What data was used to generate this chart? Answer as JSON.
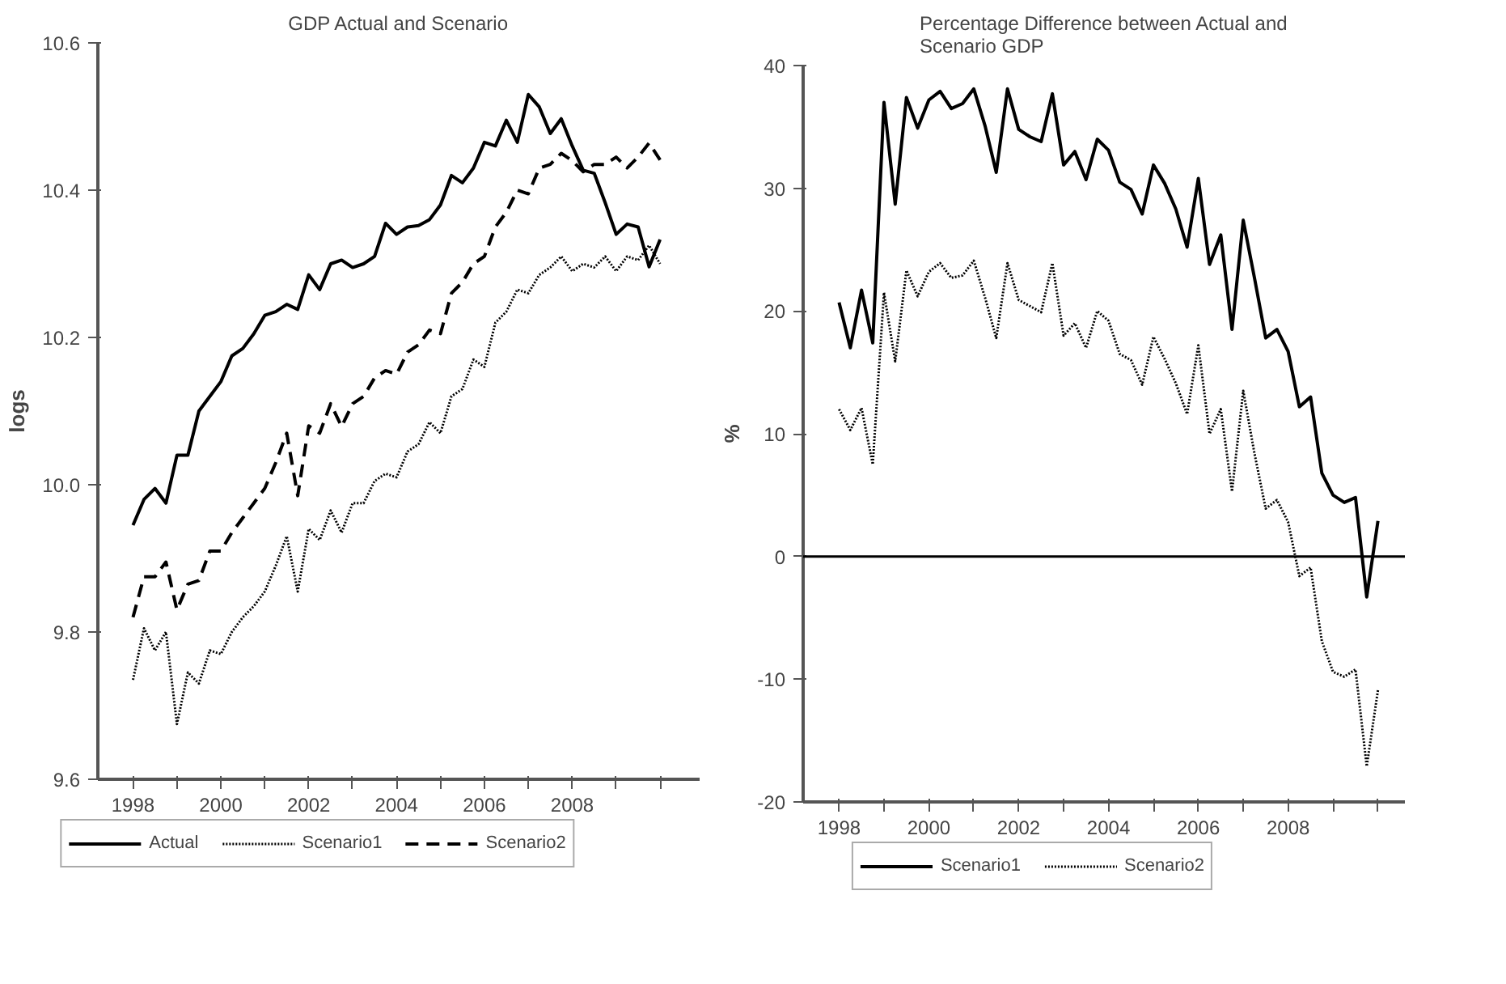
{
  "chart_data": [
    {
      "type": "line",
      "title": "GDP Actual and Scenario",
      "ylabel": "logs",
      "x": [
        1998,
        1998.25,
        1998.5,
        1998.75,
        1999,
        1999.25,
        1999.5,
        1999.75,
        2000,
        2000.25,
        2000.5,
        2000.75,
        2001,
        2001.25,
        2001.5,
        2001.75,
        2002,
        2002.25,
        2002.5,
        2002.75,
        2003,
        2003.25,
        2003.5,
        2003.75,
        2004,
        2004.25,
        2004.5,
        2004.75,
        2005,
        2005.25,
        2005.5,
        2005.75,
        2006,
        2006.25,
        2006.5,
        2006.75,
        2007,
        2007.25,
        2007.5,
        2007.75,
        2008,
        2008.25,
        2008.5,
        2008.75,
        2009,
        2009.25,
        2009.5,
        2009.75,
        2010
      ],
      "series": [
        {
          "name": "Actual",
          "color": "#000000",
          "line_style": "solid",
          "values": [
            9.945,
            9.98,
            9.995,
            9.975,
            10.04,
            10.04,
            10.1,
            10.12,
            10.14,
            10.175,
            10.185,
            10.205,
            10.23,
            10.235,
            10.245,
            10.238,
            10.285,
            10.265,
            10.3,
            10.305,
            10.295,
            10.3,
            10.31,
            10.355,
            10.34,
            10.35,
            10.352,
            10.36,
            10.38,
            10.42,
            10.41,
            10.43,
            10.465,
            10.46,
            10.495,
            10.465,
            10.53,
            10.513,
            10.477,
            10.497,
            10.46,
            10.427,
            10.423,
            10.383,
            10.34,
            10.354,
            10.35,
            10.296,
            10.333
          ]
        },
        {
          "name": "Scenario1",
          "color": "#000000",
          "line_style": "dotted",
          "values": [
            9.735,
            9.805,
            9.775,
            9.8,
            9.675,
            9.745,
            9.73,
            9.775,
            9.77,
            9.8,
            9.82,
            9.835,
            9.855,
            9.89,
            9.93,
            9.855,
            9.94,
            9.925,
            9.965,
            9.935,
            9.975,
            9.975,
            10.005,
            10.015,
            10.01,
            10.045,
            10.055,
            10.085,
            10.07,
            10.12,
            10.13,
            10.17,
            10.16,
            10.22,
            10.235,
            10.265,
            10.26,
            10.285,
            10.295,
            10.31,
            10.29,
            10.3,
            10.295,
            10.31,
            10.29,
            10.31,
            10.305,
            10.325,
            10.3
          ]
        },
        {
          "name": "Scenario2",
          "color": "#000000",
          "line_style": "dashed",
          "values": [
            9.82,
            9.875,
            9.875,
            9.895,
            9.83,
            9.865,
            9.87,
            9.91,
            9.91,
            9.935,
            9.955,
            9.975,
            9.995,
            10.03,
            10.07,
            9.985,
            10.08,
            10.07,
            10.11,
            10.079,
            10.11,
            10.12,
            10.145,
            10.155,
            10.15,
            10.18,
            10.19,
            10.21,
            10.205,
            10.26,
            10.275,
            10.3,
            10.31,
            10.35,
            10.37,
            10.4,
            10.395,
            10.43,
            10.435,
            10.45,
            10.44,
            10.425,
            10.435,
            10.435,
            10.445,
            10.43,
            10.445,
            10.464,
            10.441
          ]
        }
      ],
      "xlim": [
        1997.2,
        2010.9
      ],
      "ylim": [
        9.6,
        10.6
      ],
      "xticks": [
        1998,
        {
          "value": 1999,
          "label": null
        },
        2000,
        {
          "value": 2001,
          "label": null
        },
        2002,
        {
          "value": 2003,
          "label": null
        },
        2004,
        {
          "value": 2005,
          "label": null
        },
        2006,
        {
          "value": 2007,
          "label": null
        },
        2008,
        {
          "value": 2009,
          "label": null
        },
        {
          "value": 2010,
          "label": null
        }
      ],
      "yticks": [
        {
          "value": 9.6,
          "label": "9.6"
        },
        {
          "value": 9.8,
          "label": "9.8"
        },
        {
          "value": 10.0,
          "label": "10.0"
        },
        {
          "value": 10.2,
          "label": "10.2"
        },
        {
          "value": 10.4,
          "label": "10.4"
        },
        {
          "value": 10.6,
          "label": "10.6"
        }
      ],
      "grid": false,
      "legend": "bottom"
    },
    {
      "type": "line",
      "title": "Percentage Difference between Actual and Scenario GDP",
      "ylabel": "%",
      "x": [
        1998,
        1998.25,
        1998.5,
        1998.75,
        1999,
        1999.25,
        1999.5,
        1999.75,
        2000,
        2000.25,
        2000.5,
        2000.75,
        2001,
        2001.25,
        2001.5,
        2001.75,
        2002,
        2002.25,
        2002.5,
        2002.75,
        2003,
        2003.25,
        2003.5,
        2003.75,
        2004,
        2004.25,
        2004.5,
        2004.75,
        2005,
        2005.25,
        2005.5,
        2005.75,
        2006,
        2006.25,
        2006.5,
        2006.75,
        2007,
        2007.25,
        2007.5,
        2007.75,
        2008,
        2008.25,
        2008.5,
        2008.75,
        2009,
        2009.25,
        2009.5,
        2009.75,
        2010
      ],
      "series": [
        {
          "name": "Scenario1",
          "color": "#000000",
          "line_style": "solid",
          "values": [
            20.7,
            17.0,
            21.7,
            17.4,
            37.0,
            28.7,
            37.4,
            34.9,
            37.2,
            37.9,
            36.5,
            36.9,
            38.1,
            35.1,
            31.3,
            38.1,
            34.8,
            34.2,
            33.8,
            37.7,
            31.9,
            33.0,
            30.7,
            34.0,
            33.1,
            30.5,
            29.9,
            27.9,
            31.9,
            30.4,
            28.3,
            25.2,
            30.8,
            23.8,
            26.2,
            18.5,
            27.4,
            22.7,
            17.8,
            18.5,
            16.7,
            12.2,
            13.0,
            6.8,
            5.0,
            4.4,
            4.8,
            -3.3,
            2.9
          ]
        },
        {
          "name": "Scenario2",
          "color": "#000000",
          "line_style": "dotted",
          "values": [
            12.0,
            10.3,
            12.1,
            7.5,
            21.5,
            15.9,
            23.3,
            21.2,
            23.2,
            23.9,
            22.7,
            22.9,
            24.1,
            21.1,
            17.8,
            23.9,
            20.9,
            20.4,
            19.9,
            23.9,
            18.0,
            19.0,
            17.0,
            20.0,
            19.2,
            16.5,
            16.0,
            14.0,
            17.9,
            16.1,
            14.1,
            11.6,
            17.2,
            10.0,
            12.0,
            5.3,
            13.5,
            8.4,
            3.9,
            4.6,
            2.8,
            -1.6,
            -0.9,
            -6.9,
            -9.4,
            -9.8,
            -9.2,
            -17.1,
            -10.9
          ]
        }
      ],
      "xlim": [
        1997.2,
        2010.6
      ],
      "ylim": [
        -20,
        40
      ],
      "xticks": [
        1998,
        {
          "value": 1999,
          "label": null
        },
        2000,
        {
          "value": 2001,
          "label": null
        },
        2002,
        {
          "value": 2003,
          "label": null
        },
        2004,
        {
          "value": 2005,
          "label": null
        },
        2006,
        {
          "value": 2007,
          "label": null
        },
        2008,
        {
          "value": 2009,
          "label": null
        },
        {
          "value": 2010,
          "label": null
        }
      ],
      "yticks": [
        -20,
        -10,
        0,
        10,
        20,
        30,
        40
      ],
      "ref_lines": [
        {
          "axis": "y",
          "value": 0,
          "color": "#000000",
          "line_style": "solid"
        }
      ],
      "grid": false,
      "legend": "bottom"
    }
  ]
}
